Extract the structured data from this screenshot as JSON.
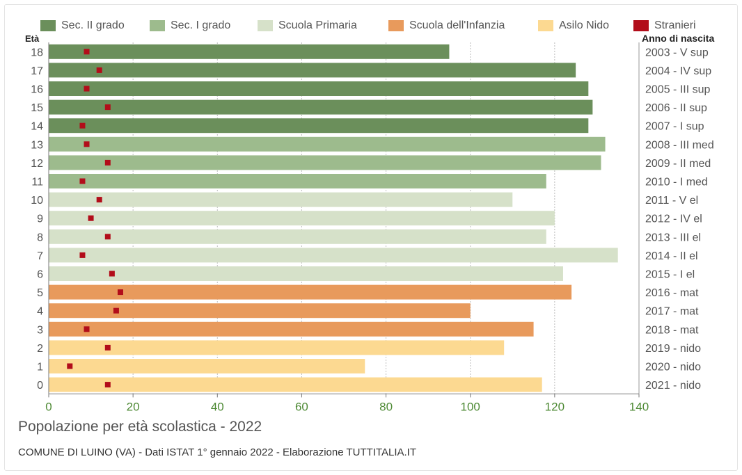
{
  "chart_data": {
    "type": "bar",
    "orientation": "horizontal",
    "title": "Popolazione per età scolastica - 2022",
    "source": "COMUNE DI LUINO (VA) - Dati ISTAT 1° gennaio 2022 - Elaborazione TUTTITALIA.IT",
    "y_left_label": "Età",
    "y_right_label": "Anno di nascita",
    "xlim": [
      0,
      140
    ],
    "x_ticks": [
      0,
      20,
      40,
      60,
      80,
      100,
      120,
      140
    ],
    "grid": "vertical",
    "legend_position": "top",
    "groups": [
      {
        "name": "Sec. II grado",
        "color": "#6b8f5b"
      },
      {
        "name": "Sec. I grado",
        "color": "#9dbb8d"
      },
      {
        "name": "Scuola Primaria",
        "color": "#d6e1c9"
      },
      {
        "name": "Scuola dell'Infanzia",
        "color": "#e89a5c"
      },
      {
        "name": "Asilo Nido",
        "color": "#fcd991"
      }
    ],
    "stranieri": {
      "name": "Stranieri",
      "color": "#b20d1a"
    },
    "rows": [
      {
        "age": "18",
        "birth": "2003 - V sup",
        "value": 95,
        "stranieri": 9,
        "group": 0
      },
      {
        "age": "17",
        "birth": "2004 - IV sup",
        "value": 125,
        "stranieri": 12,
        "group": 0
      },
      {
        "age": "16",
        "birth": "2005 - III sup",
        "value": 128,
        "stranieri": 9,
        "group": 0
      },
      {
        "age": "15",
        "birth": "2006 - II sup",
        "value": 129,
        "stranieri": 14,
        "group": 0
      },
      {
        "age": "14",
        "birth": "2007 - I sup",
        "value": 128,
        "stranieri": 8,
        "group": 0
      },
      {
        "age": "13",
        "birth": "2008 - III med",
        "value": 132,
        "stranieri": 9,
        "group": 1
      },
      {
        "age": "12",
        "birth": "2009 - II med",
        "value": 131,
        "stranieri": 14,
        "group": 1
      },
      {
        "age": "11",
        "birth": "2010 - I med",
        "value": 118,
        "stranieri": 8,
        "group": 1
      },
      {
        "age": "10",
        "birth": "2011 - V el",
        "value": 110,
        "stranieri": 12,
        "group": 2
      },
      {
        "age": "9",
        "birth": "2012 - IV el",
        "value": 120,
        "stranieri": 10,
        "group": 2
      },
      {
        "age": "8",
        "birth": "2013 - III el",
        "value": 118,
        "stranieri": 14,
        "group": 2
      },
      {
        "age": "7",
        "birth": "2014 - II el",
        "value": 135,
        "stranieri": 8,
        "group": 2
      },
      {
        "age": "6",
        "birth": "2015 - I el",
        "value": 122,
        "stranieri": 15,
        "group": 2
      },
      {
        "age": "5",
        "birth": "2016 - mat",
        "value": 124,
        "stranieri": 17,
        "group": 3
      },
      {
        "age": "4",
        "birth": "2017 - mat",
        "value": 100,
        "stranieri": 16,
        "group": 3
      },
      {
        "age": "3",
        "birth": "2018 - mat",
        "value": 115,
        "stranieri": 9,
        "group": 3
      },
      {
        "age": "2",
        "birth": "2019 - nido",
        "value": 108,
        "stranieri": 14,
        "group": 4
      },
      {
        "age": "1",
        "birth": "2020 - nido",
        "value": 75,
        "stranieri": 5,
        "group": 4
      },
      {
        "age": "0",
        "birth": "2021 - nido",
        "value": 117,
        "stranieri": 14,
        "group": 4
      }
    ]
  }
}
